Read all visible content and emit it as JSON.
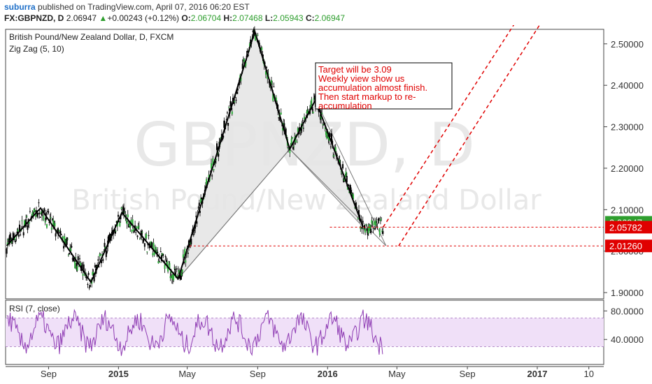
{
  "header": {
    "author": "suburra",
    "published_text": " published on TradingView.com, April 07, 2016 06:20 EST",
    "symbol": "FX:GBPNZD, D",
    "last": "2.06947",
    "change_arrow": "▲",
    "change": "+0.00243 (+0.12%)",
    "o_label": "O:",
    "o_value": "2.06704",
    "h_label": "H:",
    "h_value": "2.07468",
    "l_label": "L:",
    "l_value": "2.05943",
    "c_label": "C:",
    "c_value": "2.06947"
  },
  "chart_data": {
    "type": "candlestick",
    "title": "British Pound/New Zealand Dollar, D, FXCM",
    "indicator_label": "Zig Zag (5, 10)",
    "watermark_symbol": "GBPNZD, D",
    "watermark_name": "British Pound/New Zealand Dollar",
    "price_ticks": [
      "2.50000",
      "2.40000",
      "2.30000",
      "2.20000",
      "2.10000",
      "2.00000",
      "1.90000"
    ],
    "price_tick_values": [
      2.5,
      2.4,
      2.3,
      2.2,
      2.1,
      2.0,
      1.9
    ],
    "ylim": [
      1.885,
      2.535
    ],
    "time_ticks": [
      "Sep",
      "2015",
      "May",
      "Sep",
      "2016",
      "May",
      "Sep",
      "2017",
      "10"
    ],
    "time_ticks_bold": [
      false,
      true,
      false,
      false,
      true,
      false,
      false,
      true,
      false
    ],
    "price_labels": [
      {
        "text": "2.06947",
        "value": 2.06947,
        "color": "#2e9e2e"
      },
      {
        "text": "2.05782",
        "value": 2.05782,
        "color": "#e00000"
      },
      {
        "text": "2.01260",
        "value": 2.0126,
        "color": "#e00000"
      }
    ],
    "zigzag": [
      {
        "t": "2014-06-20",
        "v": 2.013
      },
      {
        "t": "2014-08-18",
        "v": 2.104
      },
      {
        "t": "2014-11-14",
        "v": 1.925
      },
      {
        "t": "2015-01-07",
        "v": 2.093
      },
      {
        "t": "2015-04-15",
        "v": 1.933
      },
      {
        "t": "2015-08-27",
        "v": 2.53
      },
      {
        "t": "2015-10-27",
        "v": 2.246
      },
      {
        "t": "2015-12-11",
        "v": 2.365
      },
      {
        "t": "2016-03-03",
        "v": 2.058
      },
      {
        "t": "2016-04-07",
        "v": 2.058
      }
    ],
    "harmonic_patterns": [
      {
        "points": [
          {
            "t": "2015-04-15",
            "v": 1.933
          },
          {
            "t": "2015-08-27",
            "v": 2.53
          },
          {
            "t": "2015-10-27",
            "v": 2.246
          }
        ],
        "fill": "#e6e6e6"
      },
      {
        "points": [
          {
            "t": "2015-10-27",
            "v": 2.246
          },
          {
            "t": "2015-12-11",
            "v": 2.365
          },
          {
            "t": "2016-03-03",
            "v": 2.058
          }
        ],
        "fill": "#e6e6e6"
      }
    ],
    "pattern_lines": [
      {
        "from": {
          "t": "2015-04-15",
          "v": 1.933
        },
        "to": {
          "t": "2015-10-27",
          "v": 2.246
        }
      },
      {
        "from": {
          "t": "2015-10-27",
          "v": 2.246
        },
        "to": {
          "t": "2016-04-12",
          "v": 2.013
        }
      },
      {
        "from": {
          "t": "2015-12-11",
          "v": 2.365
        },
        "to": {
          "t": "2016-04-12",
          "v": 2.013
        }
      }
    ],
    "horizontal_lines": [
      {
        "value": 2.0578,
        "from": "2016-01-05",
        "to": "2017-04-25",
        "color": "#e00000",
        "dashed": true
      },
      {
        "value": 2.0126,
        "from": "2015-05-05",
        "to": "2017-04-25",
        "color": "#e00000",
        "dashed": true
      }
    ],
    "projection_arrows": [
      {
        "from": {
          "t": "2016-04-07",
          "v": 2.058
        },
        "to": {
          "t": "2016-12-07",
          "v": 2.58
        },
        "color": "#e00000"
      },
      {
        "from": {
          "t": "2016-05-04",
          "v": 2.0126
        },
        "to": {
          "t": "2017-01-21",
          "v": 2.58
        },
        "color": "#e00000"
      }
    ],
    "annotation": {
      "lines": [
        "Target will be 3.09",
        "Weekly view show us",
        "accumulation almost finish.",
        "Then start markup to re-",
        "accumulation"
      ],
      "color": "#e00000"
    },
    "rsi": {
      "label": "RSI (7, close)",
      "ticks": [
        "80.0000",
        "40.0000"
      ],
      "tick_values": [
        80,
        40
      ],
      "band": [
        30,
        70
      ],
      "ylim": [
        5,
        95
      ]
    }
  }
}
